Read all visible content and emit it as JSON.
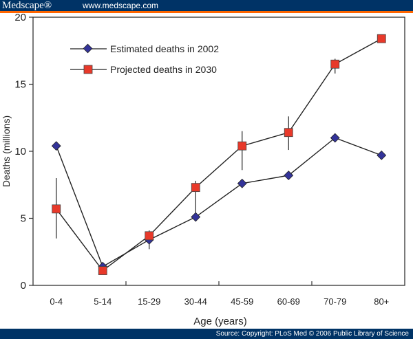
{
  "header": {
    "logo": "Medscape®",
    "url": "www.medscape.com"
  },
  "footer": {
    "source": "Source: Copyright: PLoS Med © 2006 Public Library of Science"
  },
  "chart_data": {
    "type": "line",
    "title": "",
    "xlabel": "Age (years)",
    "ylabel": "Deaths (millions)",
    "ylim": [
      0,
      20
    ],
    "yticks": [
      "0",
      "5",
      "10",
      "15",
      "20"
    ],
    "categories": [
      "0-4",
      "5-14",
      "15-29",
      "30-44",
      "45-59",
      "60-69",
      "70-79",
      "80+"
    ],
    "grid": false,
    "legend": "top-left",
    "series": [
      {
        "name": "Estimated deaths in 2002",
        "marker": "diamond",
        "color": "#333399",
        "values": [
          10.4,
          1.4,
          3.4,
          5.1,
          7.6,
          8.2,
          11.0,
          9.7
        ]
      },
      {
        "name": "Projected deaths in 2030",
        "marker": "square",
        "color": "#e8392a",
        "values": [
          5.7,
          1.1,
          3.7,
          7.3,
          10.4,
          11.4,
          16.5,
          18.4
        ],
        "error_ranges": [
          [
            3.5,
            8.0
          ],
          null,
          [
            2.7,
            4.1
          ],
          [
            5.1,
            7.8
          ],
          [
            8.6,
            11.5
          ],
          [
            10.1,
            12.6
          ],
          [
            15.8,
            16.9
          ],
          null
        ]
      }
    ]
  }
}
